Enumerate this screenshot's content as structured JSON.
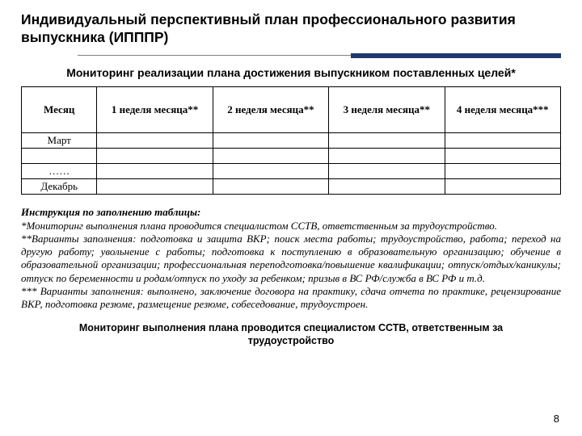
{
  "colors": {
    "text": "#000000",
    "background": "#ffffff",
    "rule_thin": "#808080",
    "rule_thick": "#1f3a6e",
    "table_border": "#000000"
  },
  "title": "Индивидуальный перспективный план профессионального развития выпускника (ИПППР)",
  "subtitle": "Мониторинг реализации плана достижения выпускником поставленных целей*",
  "table": {
    "columns": [
      "Месяц",
      "1 неделя месяца**",
      "2 неделя месяца**",
      "3 неделя месяца**",
      "4 неделя месяца***"
    ],
    "col_widths_pct": [
      14,
      21.5,
      21.5,
      21.5,
      21.5
    ],
    "rows": [
      [
        "Март",
        "",
        "",
        "",
        ""
      ],
      [
        "",
        "",
        "",
        "",
        ""
      ],
      [
        "……",
        "",
        "",
        "",
        ""
      ],
      [
        "Декабрь",
        "",
        "",
        "",
        ""
      ]
    ]
  },
  "instructions": {
    "header": "Инструкция по заполнению таблицы:",
    "p1": "*Мониторинг выполнения плана проводится специалистом ССТВ, ответственным за трудоустройство.",
    "p2": "**Варианты заполнения: подготовка и защита ВКР; поиск места работы; трудоустройство, работа; переход на другую работу; увольнение с работы; подготовка к поступлению в образовательную организацию; обучение в образовательной организации; профессиональная переподготовка/повышение квалификации; отпуск/отдых/каникулы; отпуск по беременности и родам/отпуск по уходу за ребенком; призыв в ВС РФ/служба в ВС РФ и т.д.",
    "p3": "*** Варианты заполнения: выполнено, заключение договора на практику, сдача отчета по практике, рецензирование ВКР, подготовка резюме, размещение резюме, собеседование, трудоустроен."
  },
  "footer_note": "Мониторинг выполнения плана проводится специалистом ССТВ, ответственным за трудоустройство",
  "page_number": "8"
}
